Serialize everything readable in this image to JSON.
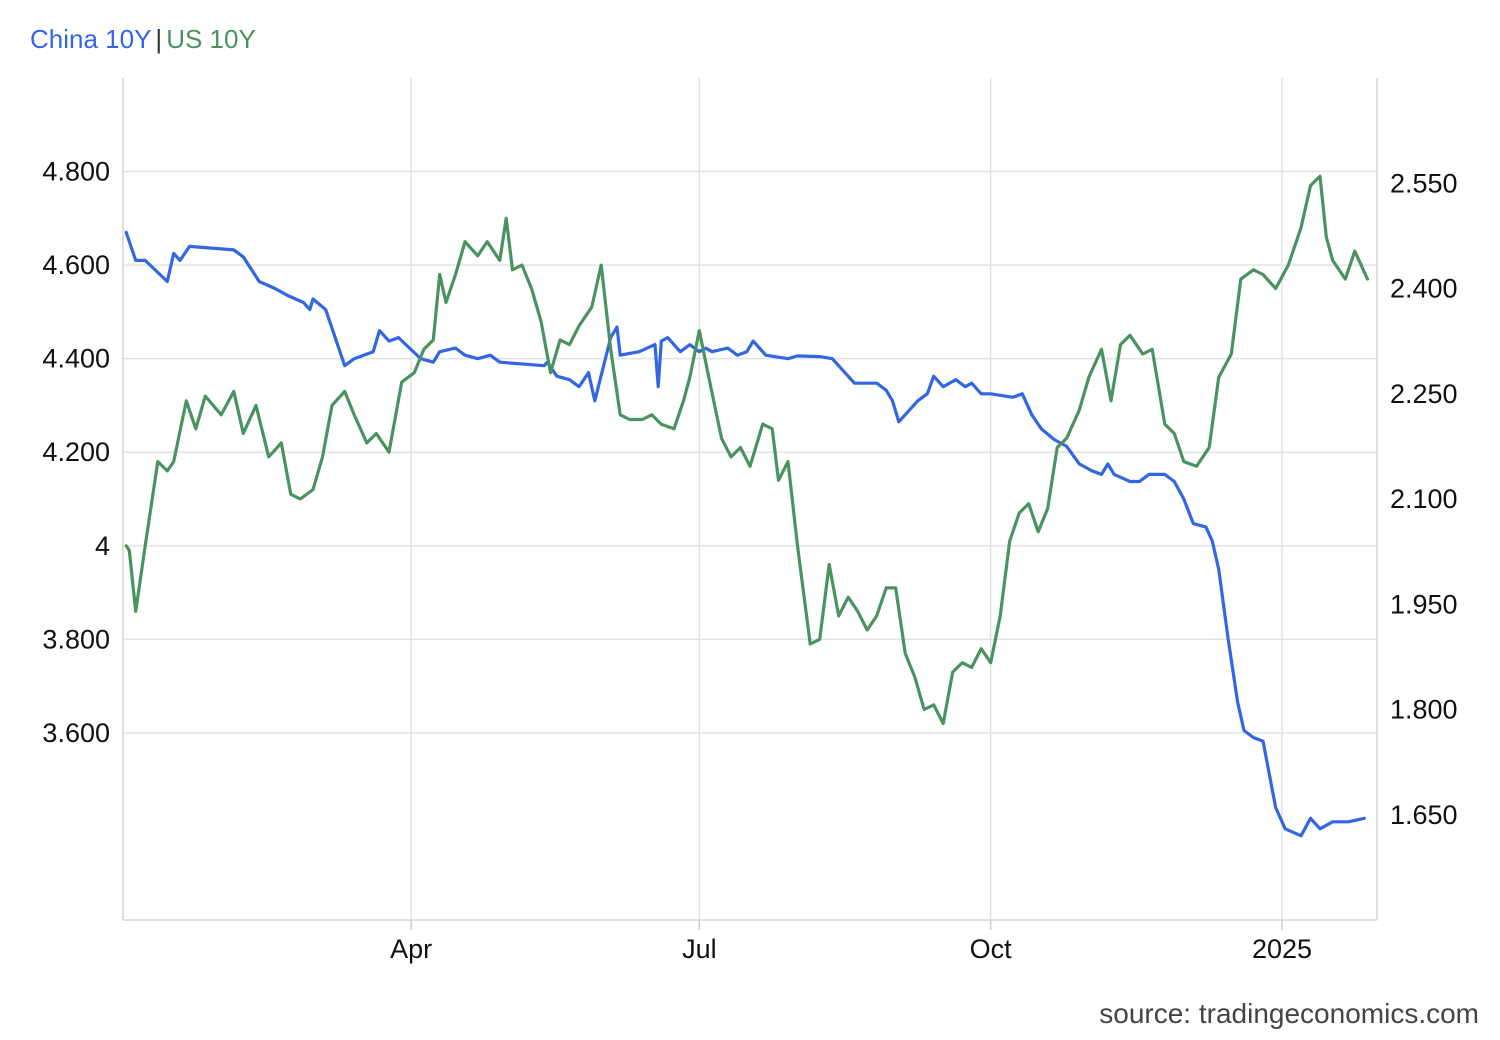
{
  "legend": {
    "series1": "China 10Y",
    "separator": "|",
    "series2": "US 10Y",
    "color1": "#3266e3",
    "color2": "#4a9360"
  },
  "source": "source: tradingeconomics.com",
  "chart_data": {
    "type": "line",
    "title": "",
    "xlabel": "",
    "ylabel_left": "",
    "ylabel_right": "",
    "x_range": [
      "2024-01-01",
      "2025-01-31"
    ],
    "x_ticks": [
      {
        "date": "2024-04-01",
        "label": "Apr"
      },
      {
        "date": "2024-07-01",
        "label": "Jul"
      },
      {
        "date": "2024-10-01",
        "label": "Oct"
      },
      {
        "date": "2025-01-01",
        "label": "2025"
      }
    ],
    "y_left": {
      "range": [
        3.2,
        5.0
      ],
      "ticks": [
        3.6,
        3.8,
        4.0,
        4.2,
        4.4,
        4.6,
        4.8
      ],
      "tick_labels": [
        "3.600",
        "3.800",
        "4",
        "4.200",
        "4.400",
        "4.600",
        "4.800"
      ]
    },
    "y_right": {
      "range": [
        1.5,
        2.7
      ],
      "ticks": [
        1.65,
        1.8,
        1.95,
        2.1,
        2.25,
        2.4,
        2.55
      ],
      "tick_labels": [
        "1.650",
        "1.800",
        "1.950",
        "2.100",
        "2.250",
        "2.400",
        "2.550"
      ]
    },
    "grid": true,
    "legend_position": "top-left",
    "series": [
      {
        "name": "China 10Y",
        "axis": "right",
        "color": "#3266e3",
        "points": [
          [
            "2024-01-02",
            2.48
          ],
          [
            "2024-01-05",
            2.44
          ],
          [
            "2024-01-08",
            2.44
          ],
          [
            "2024-01-15",
            2.41
          ],
          [
            "2024-01-17",
            2.45
          ],
          [
            "2024-01-19",
            2.44
          ],
          [
            "2024-01-22",
            2.46
          ],
          [
            "2024-02-05",
            2.455
          ],
          [
            "2024-02-08",
            2.445
          ],
          [
            "2024-02-13",
            2.41
          ],
          [
            "2024-02-18",
            2.4
          ],
          [
            "2024-02-22",
            2.39
          ],
          [
            "2024-02-27",
            2.38
          ],
          [
            "2024-02-29",
            2.37
          ],
          [
            "2024-03-01",
            2.385
          ],
          [
            "2024-03-05",
            2.37
          ],
          [
            "2024-03-08",
            2.33
          ],
          [
            "2024-03-11",
            2.29
          ],
          [
            "2024-03-14",
            2.3
          ],
          [
            "2024-03-20",
            2.31
          ],
          [
            "2024-03-22",
            2.34
          ],
          [
            "2024-03-25",
            2.325
          ],
          [
            "2024-03-28",
            2.33
          ],
          [
            "2024-04-04",
            2.3
          ],
          [
            "2024-04-08",
            2.295
          ],
          [
            "2024-04-10",
            2.31
          ],
          [
            "2024-04-15",
            2.315
          ],
          [
            "2024-04-18",
            2.305
          ],
          [
            "2024-04-22",
            2.3
          ],
          [
            "2024-04-26",
            2.305
          ],
          [
            "2024-04-29",
            2.295
          ],
          [
            "2024-05-13",
            2.29
          ],
          [
            "2024-05-14",
            2.295
          ],
          [
            "2024-05-17",
            2.275
          ],
          [
            "2024-05-21",
            2.27
          ],
          [
            "2024-05-24",
            2.26
          ],
          [
            "2024-05-27",
            2.28
          ],
          [
            "2024-05-29",
            2.24
          ],
          [
            "2024-06-03",
            2.33
          ],
          [
            "2024-06-05",
            2.345
          ],
          [
            "2024-06-06",
            2.305
          ],
          [
            "2024-06-12",
            2.31
          ],
          [
            "2024-06-17",
            2.32
          ],
          [
            "2024-06-18",
            2.26
          ],
          [
            "2024-06-19",
            2.325
          ],
          [
            "2024-06-21",
            2.33
          ],
          [
            "2024-06-25",
            2.31
          ],
          [
            "2024-06-28",
            2.32
          ],
          [
            "2024-07-01",
            2.31
          ],
          [
            "2024-07-03",
            2.315
          ],
          [
            "2024-07-05",
            2.31
          ],
          [
            "2024-07-10",
            2.315
          ],
          [
            "2024-07-13",
            2.305
          ],
          [
            "2024-07-16",
            2.31
          ],
          [
            "2024-07-18",
            2.325
          ],
          [
            "2024-07-22",
            2.305
          ],
          [
            "2024-07-29",
            2.3
          ],
          [
            "2024-08-01",
            2.304
          ],
          [
            "2024-08-08",
            2.303
          ],
          [
            "2024-08-12",
            2.3
          ],
          [
            "2024-08-15",
            2.285
          ],
          [
            "2024-08-19",
            2.265
          ],
          [
            "2024-08-22",
            2.265
          ],
          [
            "2024-08-26",
            2.265
          ],
          [
            "2024-08-29",
            2.255
          ],
          [
            "2024-08-31",
            2.24
          ],
          [
            "2024-09-02",
            2.21
          ],
          [
            "2024-09-05",
            2.225
          ],
          [
            "2024-09-08",
            2.24
          ],
          [
            "2024-09-11",
            2.25
          ],
          [
            "2024-09-13",
            2.275
          ],
          [
            "2024-09-16",
            2.26
          ],
          [
            "2024-09-20",
            2.27
          ],
          [
            "2024-09-23",
            2.26
          ],
          [
            "2024-09-25",
            2.265
          ],
          [
            "2024-09-28",
            2.25
          ],
          [
            "2024-10-01",
            2.25
          ],
          [
            "2024-10-08",
            2.245
          ],
          [
            "2024-10-11",
            2.25
          ],
          [
            "2024-10-14",
            2.22
          ],
          [
            "2024-10-17",
            2.2
          ],
          [
            "2024-10-21",
            2.185
          ],
          [
            "2024-10-25",
            2.175
          ],
          [
            "2024-10-29",
            2.15
          ],
          [
            "2024-11-02",
            2.14
          ],
          [
            "2024-11-05",
            2.135
          ],
          [
            "2024-11-07",
            2.15
          ],
          [
            "2024-11-09",
            2.135
          ],
          [
            "2024-11-14",
            2.125
          ],
          [
            "2024-11-17",
            2.125
          ],
          [
            "2024-11-20",
            2.135
          ],
          [
            "2024-11-25",
            2.135
          ],
          [
            "2024-11-28",
            2.125
          ],
          [
            "2024-12-01",
            2.1
          ],
          [
            "2024-12-04",
            2.065
          ],
          [
            "2024-12-08",
            2.06
          ],
          [
            "2024-12-10",
            2.04
          ],
          [
            "2024-12-12",
            2.0
          ],
          [
            "2024-12-15",
            1.9
          ],
          [
            "2024-12-18",
            1.81
          ],
          [
            "2024-12-20",
            1.77
          ],
          [
            "2024-12-23",
            1.76
          ],
          [
            "2024-12-26",
            1.755
          ],
          [
            "2024-12-30",
            1.66
          ],
          [
            "2025-01-02",
            1.63
          ],
          [
            "2025-01-07",
            1.62
          ],
          [
            "2025-01-10",
            1.645
          ],
          [
            "2025-01-13",
            1.63
          ],
          [
            "2025-01-17",
            1.64
          ],
          [
            "2025-01-22",
            1.64
          ],
          [
            "2025-01-27",
            1.645
          ]
        ]
      },
      {
        "name": "US 10Y",
        "axis": "left",
        "color": "#4a9360",
        "points": [
          [
            "2024-01-02",
            4.0
          ],
          [
            "2024-01-03",
            3.99
          ],
          [
            "2024-01-05",
            3.86
          ],
          [
            "2024-01-08",
            4.0
          ],
          [
            "2024-01-12",
            4.18
          ],
          [
            "2024-01-15",
            4.16
          ],
          [
            "2024-01-17",
            4.18
          ],
          [
            "2024-01-21",
            4.31
          ],
          [
            "2024-01-24",
            4.25
          ],
          [
            "2024-01-27",
            4.32
          ],
          [
            "2024-02-01",
            4.28
          ],
          [
            "2024-02-05",
            4.33
          ],
          [
            "2024-02-08",
            4.24
          ],
          [
            "2024-02-12",
            4.3
          ],
          [
            "2024-02-16",
            4.19
          ],
          [
            "2024-02-20",
            4.22
          ],
          [
            "2024-02-23",
            4.11
          ],
          [
            "2024-02-26",
            4.1
          ],
          [
            "2024-03-01",
            4.12
          ],
          [
            "2024-03-04",
            4.19
          ],
          [
            "2024-03-07",
            4.3
          ],
          [
            "2024-03-11",
            4.33
          ],
          [
            "2024-03-14",
            4.28
          ],
          [
            "2024-03-18",
            4.22
          ],
          [
            "2024-03-21",
            4.24
          ],
          [
            "2024-03-25",
            4.2
          ],
          [
            "2024-03-29",
            4.35
          ],
          [
            "2024-04-02",
            4.37
          ],
          [
            "2024-04-05",
            4.42
          ],
          [
            "2024-04-08",
            4.44
          ],
          [
            "2024-04-10",
            4.58
          ],
          [
            "2024-04-12",
            4.52
          ],
          [
            "2024-04-15",
            4.58
          ],
          [
            "2024-04-18",
            4.65
          ],
          [
            "2024-04-22",
            4.62
          ],
          [
            "2024-04-25",
            4.65
          ],
          [
            "2024-04-29",
            4.61
          ],
          [
            "2024-05-01",
            4.7
          ],
          [
            "2024-05-03",
            4.59
          ],
          [
            "2024-05-06",
            4.6
          ],
          [
            "2024-05-09",
            4.55
          ],
          [
            "2024-05-12",
            4.48
          ],
          [
            "2024-05-15",
            4.37
          ],
          [
            "2024-05-18",
            4.44
          ],
          [
            "2024-05-21",
            4.43
          ],
          [
            "2024-05-24",
            4.47
          ],
          [
            "2024-05-28",
            4.51
          ],
          [
            "2024-05-31",
            4.6
          ],
          [
            "2024-06-03",
            4.42
          ],
          [
            "2024-06-06",
            4.28
          ],
          [
            "2024-06-09",
            4.27
          ],
          [
            "2024-06-13",
            4.27
          ],
          [
            "2024-06-16",
            4.28
          ],
          [
            "2024-06-19",
            4.26
          ],
          [
            "2024-06-23",
            4.25
          ],
          [
            "2024-06-26",
            4.31
          ],
          [
            "2024-06-28",
            4.36
          ],
          [
            "2024-07-01",
            4.46
          ],
          [
            "2024-07-04",
            4.36
          ],
          [
            "2024-07-08",
            4.23
          ],
          [
            "2024-07-11",
            4.19
          ],
          [
            "2024-07-14",
            4.21
          ],
          [
            "2024-07-17",
            4.17
          ],
          [
            "2024-07-21",
            4.26
          ],
          [
            "2024-07-24",
            4.25
          ],
          [
            "2024-07-26",
            4.14
          ],
          [
            "2024-07-29",
            4.18
          ],
          [
            "2024-08-01",
            4.0
          ],
          [
            "2024-08-05",
            3.79
          ],
          [
            "2024-08-08",
            3.8
          ],
          [
            "2024-08-11",
            3.96
          ],
          [
            "2024-08-14",
            3.85
          ],
          [
            "2024-08-17",
            3.89
          ],
          [
            "2024-08-20",
            3.86
          ],
          [
            "2024-08-23",
            3.82
          ],
          [
            "2024-08-26",
            3.85
          ],
          [
            "2024-08-29",
            3.91
          ],
          [
            "2024-09-01",
            3.91
          ],
          [
            "2024-09-04",
            3.77
          ],
          [
            "2024-09-07",
            3.72
          ],
          [
            "2024-09-10",
            3.65
          ],
          [
            "2024-09-13",
            3.66
          ],
          [
            "2024-09-16",
            3.62
          ],
          [
            "2024-09-19",
            3.73
          ],
          [
            "2024-09-22",
            3.75
          ],
          [
            "2024-09-25",
            3.74
          ],
          [
            "2024-09-28",
            3.78
          ],
          [
            "2024-10-01",
            3.75
          ],
          [
            "2024-10-04",
            3.85
          ],
          [
            "2024-10-07",
            4.01
          ],
          [
            "2024-10-10",
            4.07
          ],
          [
            "2024-10-13",
            4.09
          ],
          [
            "2024-10-16",
            4.03
          ],
          [
            "2024-10-19",
            4.08
          ],
          [
            "2024-10-22",
            4.21
          ],
          [
            "2024-10-25",
            4.23
          ],
          [
            "2024-10-29",
            4.29
          ],
          [
            "2024-11-01",
            4.36
          ],
          [
            "2024-11-05",
            4.42
          ],
          [
            "2024-11-08",
            4.31
          ],
          [
            "2024-11-11",
            4.43
          ],
          [
            "2024-11-14",
            4.45
          ],
          [
            "2024-11-18",
            4.41
          ],
          [
            "2024-11-21",
            4.42
          ],
          [
            "2024-11-25",
            4.26
          ],
          [
            "2024-11-28",
            4.24
          ],
          [
            "2024-12-01",
            4.18
          ],
          [
            "2024-12-05",
            4.17
          ],
          [
            "2024-12-09",
            4.21
          ],
          [
            "2024-12-12",
            4.36
          ],
          [
            "2024-12-16",
            4.41
          ],
          [
            "2024-12-19",
            4.57
          ],
          [
            "2024-12-23",
            4.59
          ],
          [
            "2024-12-26",
            4.58
          ],
          [
            "2024-12-30",
            4.55
          ],
          [
            "2025-01-03",
            4.6
          ],
          [
            "2025-01-07",
            4.68
          ],
          [
            "2025-01-10",
            4.77
          ],
          [
            "2025-01-13",
            4.79
          ],
          [
            "2025-01-15",
            4.66
          ],
          [
            "2025-01-17",
            4.61
          ],
          [
            "2025-01-21",
            4.57
          ],
          [
            "2025-01-24",
            4.63
          ],
          [
            "2025-01-28",
            4.57
          ]
        ]
      }
    ]
  }
}
